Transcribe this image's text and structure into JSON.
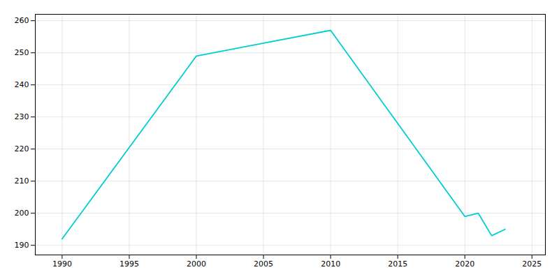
{
  "chart_data": {
    "type": "line",
    "x": [
      1990,
      2000,
      2005,
      2010,
      2020,
      2021,
      2022,
      2023
    ],
    "values": [
      192,
      249,
      253,
      257,
      199,
      200,
      193,
      195
    ],
    "color": "#00CED1",
    "xlim": [
      1988,
      2026
    ],
    "ylim": [
      187,
      262
    ],
    "xticks": [
      1990,
      1995,
      2000,
      2005,
      2010,
      2015,
      2020,
      2025
    ],
    "yticks": [
      190,
      200,
      210,
      220,
      230,
      240,
      250,
      260
    ],
    "grid": true
  }
}
